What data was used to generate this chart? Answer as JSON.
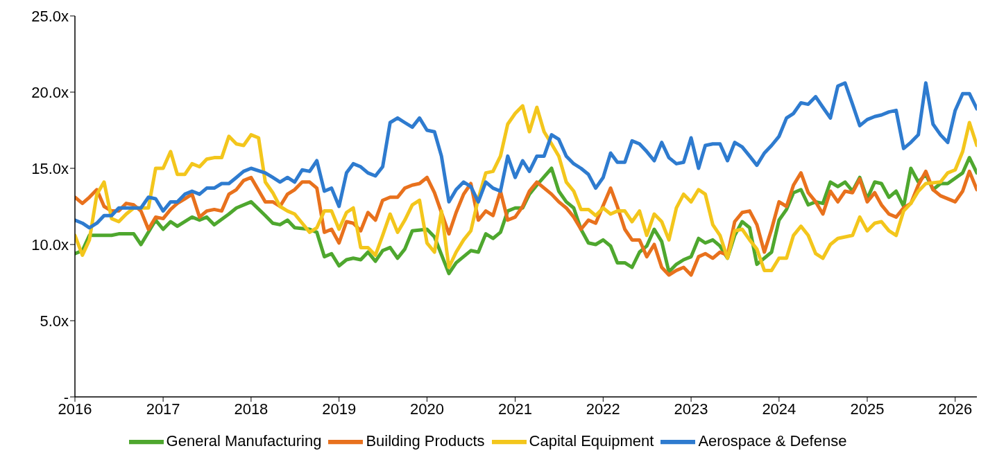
{
  "chart_data": {
    "type": "line",
    "xlim": [
      "2016-01",
      "2026-04"
    ],
    "xticks": [
      "2016",
      "2017",
      "2018",
      "2019",
      "2020",
      "2021",
      "2022",
      "2023",
      "2024",
      "2025",
      "2026"
    ],
    "ylim": [
      0,
      25
    ],
    "yticks": [
      {
        "value": 0,
        "label": "-"
      },
      {
        "value": 5,
        "label": "5.0x"
      },
      {
        "value": 10,
        "label": "10.0x"
      },
      {
        "value": 15,
        "label": "15.0x"
      },
      {
        "value": 20,
        "label": "20.0x"
      },
      {
        "value": 25,
        "label": "25.0x"
      }
    ],
    "legend": "bottom",
    "marker": "none",
    "line_style": "solid",
    "series": [
      {
        "name": "General Manufacturing",
        "color": "#4ea72e",
        "x": [
          "2016-01",
          "2016-02",
          "2016-03",
          "2016-06",
          "2016-07",
          "2016-09",
          "2016-10",
          "2016-12",
          "2017-01",
          "2017-02",
          "2017-03",
          "2017-05",
          "2017-06",
          "2017-07",
          "2017-08",
          "2017-10",
          "2017-11",
          "2018-01",
          "2018-03",
          "2018-04",
          "2018-05",
          "2018-06",
          "2018-07",
          "2018-09",
          "2018-10",
          "2018-11",
          "2018-12",
          "2019-01",
          "2019-02",
          "2019-03",
          "2019-04",
          "2019-05",
          "2019-06",
          "2019-07",
          "2019-08",
          "2019-09",
          "2019-10",
          "2019-11",
          "2020-01",
          "2020-02",
          "2020-04",
          "2020-05",
          "2020-07",
          "2020-08",
          "2020-09",
          "2020-10",
          "2020-11",
          "2020-12",
          "2021-01",
          "2021-02",
          "2021-03",
          "2021-04",
          "2021-06",
          "2021-07",
          "2021-08",
          "2021-09",
          "2021-10",
          "2021-11",
          "2021-12",
          "2022-01",
          "2022-02",
          "2022-03",
          "2022-04",
          "2022-05",
          "2022-06",
          "2022-07",
          "2022-08",
          "2022-09",
          "2022-10",
          "2022-11",
          "2022-12",
          "2023-01",
          "2023-02",
          "2023-03",
          "2023-04",
          "2023-05",
          "2023-06",
          "2023-07",
          "2023-08",
          "2023-09",
          "2023-10",
          "2023-12",
          "2024-01",
          "2024-02",
          "2024-03",
          "2024-04",
          "2024-05",
          "2024-06",
          "2024-07",
          "2024-08",
          "2024-09",
          "2024-10",
          "2024-11",
          "2024-12",
          "2025-01",
          "2025-02",
          "2025-03",
          "2025-04",
          "2025-05",
          "2025-06",
          "2025-07",
          "2025-08",
          "2025-09",
          "2025-10",
          "2025-11",
          "2025-12",
          "2026-02",
          "2026-03",
          "2026-04"
        ],
        "values": [
          9.4,
          9.6,
          10.6,
          10.6,
          10.7,
          10.7,
          10.0,
          11.6,
          11.0,
          11.5,
          11.2,
          11.8,
          11.6,
          11.8,
          11.3,
          12.0,
          12.4,
          12.8,
          11.9,
          11.4,
          11.3,
          11.6,
          11.1,
          11.0,
          10.8,
          9.2,
          9.4,
          8.6,
          9.0,
          9.1,
          9.0,
          9.5,
          8.9,
          9.6,
          9.8,
          9.1,
          9.7,
          10.9,
          11.0,
          10.5,
          8.1,
          8.8,
          9.6,
          9.5,
          10.7,
          10.4,
          10.8,
          12.2,
          12.4,
          12.4,
          13.3,
          13.9,
          15.0,
          13.5,
          12.8,
          12.4,
          11.0,
          10.1,
          10.0,
          10.3,
          9.9,
          8.8,
          8.8,
          8.5,
          9.5,
          9.9,
          11.0,
          10.2,
          8.2,
          8.7,
          9.0,
          9.2,
          10.4,
          10.1,
          10.3,
          9.9,
          9.1,
          10.6,
          11.5,
          11.1,
          8.7,
          9.5,
          11.6,
          12.3,
          13.4,
          13.6,
          12.6,
          12.8,
          12.7,
          14.1,
          13.8,
          14.1,
          13.5,
          14.4,
          13.0,
          14.1,
          14.0,
          13.1,
          13.5,
          12.5,
          15.0,
          14.1,
          14.6,
          13.6,
          14.0,
          14.0,
          14.7,
          15.7,
          14.7
        ]
      },
      {
        "name": "Building Products",
        "color": "#e8711d",
        "x": [
          "2016-01",
          "2016-02",
          "2016-03",
          "2016-04",
          "2016-05",
          "2016-06",
          "2016-07",
          "2016-08",
          "2016-09",
          "2016-10",
          "2016-11",
          "2016-12",
          "2017-01",
          "2017-02",
          "2017-03",
          "2017-04",
          "2017-05",
          "2017-06",
          "2017-07",
          "2017-08",
          "2017-09",
          "2017-10",
          "2017-11",
          "2017-12",
          "2018-01",
          "2018-03",
          "2018-04",
          "2018-05",
          "2018-06",
          "2018-07",
          "2018-08",
          "2018-09",
          "2018-10",
          "2018-11",
          "2018-12",
          "2019-01",
          "2019-02",
          "2019-03",
          "2019-04",
          "2019-05",
          "2019-06",
          "2019-07",
          "2019-08",
          "2019-09",
          "2019-10",
          "2019-11",
          "2019-12",
          "2020-01",
          "2020-02",
          "2020-04",
          "2020-05",
          "2020-06",
          "2020-07",
          "2020-08",
          "2020-09",
          "2020-10",
          "2020-11",
          "2020-12",
          "2021-01",
          "2021-02",
          "2021-03",
          "2021-04",
          "2021-06",
          "2021-07",
          "2021-08",
          "2021-09",
          "2021-10",
          "2021-11",
          "2021-12",
          "2022-02",
          "2022-03",
          "2022-04",
          "2022-05",
          "2022-06",
          "2022-07",
          "2022-08",
          "2022-09",
          "2022-10",
          "2022-11",
          "2022-12",
          "2023-01",
          "2023-02",
          "2023-03",
          "2023-04",
          "2023-05",
          "2023-06",
          "2023-07",
          "2023-08",
          "2023-09",
          "2023-10",
          "2023-11",
          "2023-12",
          "2024-01",
          "2024-02",
          "2024-03",
          "2024-04",
          "2024-05",
          "2024-06",
          "2024-07",
          "2024-08",
          "2024-09",
          "2024-10",
          "2024-11",
          "2024-12",
          "2025-01",
          "2025-02",
          "2025-03",
          "2025-04",
          "2025-05",
          "2025-06",
          "2025-07",
          "2025-08",
          "2025-09",
          "2025-10",
          "2025-11",
          "2026-01",
          "2026-02",
          "2026-03",
          "2026-04"
        ],
        "values": [
          13.1,
          12.7,
          13.1,
          13.6,
          12.5,
          12.2,
          12.2,
          12.7,
          12.6,
          12.2,
          11.0,
          11.8,
          11.7,
          12.3,
          12.7,
          13.0,
          13.3,
          11.8,
          12.2,
          12.3,
          12.2,
          13.3,
          13.6,
          14.2,
          14.4,
          12.8,
          12.8,
          12.5,
          13.3,
          13.6,
          14.1,
          14.1,
          13.7,
          10.8,
          11.0,
          10.1,
          11.5,
          11.4,
          10.9,
          12.1,
          11.6,
          12.9,
          13.1,
          13.1,
          13.7,
          13.9,
          14.0,
          14.4,
          13.4,
          10.7,
          12.1,
          13.3,
          14.0,
          11.6,
          12.2,
          11.9,
          13.5,
          11.6,
          11.8,
          12.5,
          13.5,
          14.1,
          13.3,
          12.8,
          12.4,
          11.8,
          11.0,
          11.6,
          11.4,
          13.7,
          12.5,
          11.0,
          10.3,
          10.3,
          9.2,
          10.0,
          8.5,
          8.0,
          8.3,
          8.5,
          8.0,
          9.2,
          9.4,
          9.1,
          9.5,
          9.3,
          11.5,
          12.1,
          12.2,
          11.3,
          9.5,
          11.0,
          12.8,
          12.5,
          13.9,
          14.7,
          13.4,
          12.8,
          12.0,
          13.5,
          12.8,
          13.5,
          13.4,
          14.3,
          12.8,
          13.4,
          12.6,
          12.0,
          11.8,
          12.4,
          12.7,
          13.9,
          14.8,
          13.6,
          13.2,
          12.8,
          13.5,
          14.8,
          13.6
        ]
      },
      {
        "name": "Capital Equipment",
        "color": "#f3c61c",
        "x": [
          "2016-01",
          "2016-02",
          "2016-03",
          "2016-04",
          "2016-05",
          "2016-06",
          "2016-07",
          "2016-08",
          "2016-09",
          "2016-11",
          "2016-12",
          "2017-01",
          "2017-02",
          "2017-03",
          "2017-04",
          "2017-05",
          "2017-06",
          "2017-07",
          "2017-08",
          "2017-09",
          "2017-10",
          "2017-11",
          "2017-12",
          "2018-01",
          "2018-02",
          "2018-03",
          "2018-04",
          "2018-05",
          "2018-06",
          "2018-07",
          "2018-09",
          "2018-10",
          "2018-11",
          "2018-12",
          "2019-01",
          "2019-02",
          "2019-03",
          "2019-04",
          "2019-05",
          "2019-06",
          "2019-07",
          "2019-08",
          "2019-09",
          "2019-10",
          "2019-11",
          "2019-12",
          "2020-01",
          "2020-02",
          "2020-03",
          "2020-04",
          "2020-05",
          "2020-06",
          "2020-07",
          "2020-08",
          "2020-09",
          "2020-10",
          "2020-11",
          "2020-12",
          "2021-01",
          "2021-02",
          "2021-03",
          "2021-04",
          "2021-05",
          "2021-06",
          "2021-07",
          "2021-08",
          "2021-09",
          "2021-10",
          "2021-11",
          "2021-12",
          "2022-01",
          "2022-02",
          "2022-03",
          "2022-04",
          "2022-05",
          "2022-06",
          "2022-07",
          "2022-08",
          "2022-09",
          "2022-10",
          "2022-11",
          "2022-12",
          "2023-01",
          "2023-02",
          "2023-03",
          "2023-04",
          "2023-05",
          "2023-06",
          "2023-07",
          "2023-08",
          "2023-09",
          "2023-10",
          "2023-11",
          "2023-12",
          "2024-01",
          "2024-02",
          "2024-03",
          "2024-04",
          "2024-05",
          "2024-06",
          "2024-07",
          "2024-08",
          "2024-09",
          "2024-11",
          "2024-12",
          "2025-01",
          "2025-02",
          "2025-03",
          "2025-04",
          "2025-05",
          "2025-06",
          "2025-07",
          "2025-08",
          "2025-09",
          "2025-11",
          "2025-12",
          "2026-01",
          "2026-02",
          "2026-03",
          "2026-04"
        ],
        "values": [
          10.6,
          9.3,
          10.3,
          13.3,
          14.1,
          11.7,
          11.5,
          12.0,
          12.4,
          12.4,
          15.0,
          15.0,
          16.1,
          14.6,
          14.6,
          15.3,
          15.1,
          15.6,
          15.7,
          15.7,
          17.1,
          16.6,
          16.5,
          17.2,
          17.0,
          14.1,
          13.4,
          12.5,
          12.2,
          12.0,
          10.8,
          11.1,
          12.2,
          12.2,
          11.0,
          12.1,
          12.4,
          9.8,
          9.8,
          9.3,
          10.6,
          12.0,
          10.8,
          11.6,
          12.6,
          12.9,
          10.1,
          9.5,
          12.2,
          8.5,
          9.5,
          10.3,
          10.9,
          13.0,
          14.7,
          14.8,
          15.8,
          17.9,
          18.6,
          19.1,
          17.4,
          19.0,
          17.4,
          16.6,
          15.8,
          14.1,
          13.5,
          12.3,
          12.3,
          11.9,
          12.4,
          12.0,
          12.2,
          12.2,
          11.5,
          12.2,
          10.6,
          12.0,
          11.5,
          10.3,
          12.4,
          13.3,
          12.8,
          13.6,
          13.3,
          11.3,
          10.6,
          9.1,
          10.9,
          11.0,
          10.3,
          9.7,
          8.3,
          8.3,
          9.1,
          9.1,
          10.6,
          11.2,
          10.6,
          9.4,
          9.1,
          10.0,
          10.4,
          10.6,
          11.8,
          10.9,
          11.4,
          11.5,
          10.9,
          10.6,
          12.2,
          12.7,
          13.5,
          14.0,
          14.1,
          14.7,
          14.9,
          16.1,
          18.0,
          16.5
        ]
      },
      {
        "name": "Aerospace & Defense",
        "color": "#2e7bcf",
        "x": [
          "2016-01",
          "2016-02",
          "2016-03",
          "2016-04",
          "2016-05",
          "2016-06",
          "2016-07",
          "2016-08",
          "2016-10",
          "2016-11",
          "2016-12",
          "2017-01",
          "2017-02",
          "2017-03",
          "2017-04",
          "2017-05",
          "2017-06",
          "2017-07",
          "2017-08",
          "2017-09",
          "2017-10",
          "2017-11",
          "2017-12",
          "2018-01",
          "2018-03",
          "2018-04",
          "2018-05",
          "2018-06",
          "2018-07",
          "2018-08",
          "2018-09",
          "2018-10",
          "2018-11",
          "2018-12",
          "2019-01",
          "2019-02",
          "2019-03",
          "2019-04",
          "2019-05",
          "2019-06",
          "2019-07",
          "2019-08",
          "2019-09",
          "2019-10",
          "2019-11",
          "2019-12",
          "2020-01",
          "2020-02",
          "2020-03",
          "2020-04",
          "2020-05",
          "2020-06",
          "2020-07",
          "2020-08",
          "2020-09",
          "2020-10",
          "2020-11",
          "2020-12",
          "2021-01",
          "2021-02",
          "2021-03",
          "2021-04",
          "2021-05",
          "2021-06",
          "2021-07",
          "2021-08",
          "2021-09",
          "2021-10",
          "2021-11",
          "2021-12",
          "2022-01",
          "2022-02",
          "2022-03",
          "2022-04",
          "2022-05",
          "2022-06",
          "2022-07",
          "2022-08",
          "2022-09",
          "2022-10",
          "2022-11",
          "2022-12",
          "2023-01",
          "2023-02",
          "2023-03",
          "2023-04",
          "2023-05",
          "2023-06",
          "2023-07",
          "2023-08",
          "2023-09",
          "2023-10",
          "2023-11",
          "2023-12",
          "2024-01",
          "2024-02",
          "2024-03",
          "2024-04",
          "2024-05",
          "2024-06",
          "2024-07",
          "2024-08",
          "2024-09",
          "2024-10",
          "2024-11",
          "2024-12",
          "2025-01",
          "2025-02",
          "2025-03",
          "2025-04",
          "2025-05",
          "2025-06",
          "2025-07",
          "2025-08",
          "2025-09",
          "2025-10",
          "2025-11",
          "2025-12",
          "2026-01",
          "2026-02",
          "2026-03",
          "2026-04"
        ],
        "values": [
          11.6,
          11.4,
          11.1,
          11.4,
          11.9,
          11.9,
          12.4,
          12.4,
          12.4,
          13.1,
          13.0,
          12.2,
          12.8,
          12.8,
          13.3,
          13.5,
          13.3,
          13.7,
          13.7,
          14.0,
          14.0,
          14.4,
          14.8,
          15.0,
          14.7,
          14.4,
          14.1,
          14.4,
          14.1,
          14.9,
          14.8,
          15.5,
          13.5,
          13.7,
          12.5,
          14.7,
          15.3,
          15.1,
          14.7,
          14.5,
          15.1,
          18.0,
          18.3,
          18.0,
          17.7,
          18.3,
          17.5,
          17.4,
          15.8,
          12.8,
          13.6,
          14.1,
          13.8,
          12.8,
          14.1,
          13.7,
          13.5,
          15.8,
          14.4,
          15.5,
          14.8,
          15.8,
          15.8,
          17.2,
          16.9,
          15.8,
          15.3,
          15.0,
          14.6,
          13.7,
          14.4,
          16.0,
          15.4,
          15.4,
          16.8,
          16.6,
          16.1,
          15.5,
          16.7,
          15.7,
          15.3,
          15.4,
          17.0,
          15.0,
          16.5,
          16.6,
          16.6,
          15.5,
          16.7,
          16.4,
          15.8,
          15.2,
          16.0,
          16.5,
          17.1,
          18.3,
          18.6,
          19.3,
          19.2,
          19.7,
          19.0,
          18.3,
          20.4,
          20.6,
          19.2,
          17.8,
          18.2,
          18.4,
          18.5,
          18.7,
          18.8,
          16.3,
          16.7,
          17.2,
          20.6,
          17.9,
          17.2,
          16.7,
          18.8,
          19.9,
          19.9,
          18.9
        ]
      }
    ]
  }
}
